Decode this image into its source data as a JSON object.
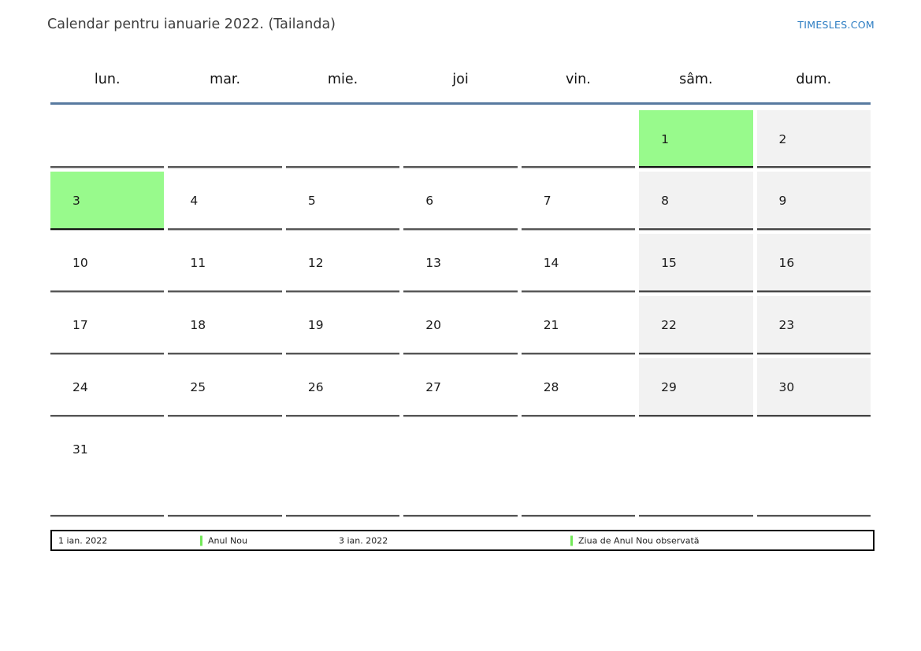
{
  "header": {
    "title": "Calendar pentru ianuarie 2022. (Tailanda)",
    "site": "TIMESLES.COM"
  },
  "calendar": {
    "weekdays": [
      "lun.",
      "mar.",
      "mie.",
      "joi",
      "vin.",
      "sâm.",
      "dum."
    ],
    "weeks": [
      {
        "days": [
          {
            "label": "",
            "type": "empty"
          },
          {
            "label": "",
            "type": "empty"
          },
          {
            "label": "",
            "type": "empty"
          },
          {
            "label": "",
            "type": "empty"
          },
          {
            "label": "",
            "type": "empty"
          },
          {
            "label": "1",
            "type": "holiday"
          },
          {
            "label": "2",
            "type": "weekend"
          }
        ]
      },
      {
        "days": [
          {
            "label": "3",
            "type": "holiday"
          },
          {
            "label": "4",
            "type": "normal"
          },
          {
            "label": "5",
            "type": "normal"
          },
          {
            "label": "6",
            "type": "normal"
          },
          {
            "label": "7",
            "type": "normal"
          },
          {
            "label": "8",
            "type": "weekend"
          },
          {
            "label": "9",
            "type": "weekend"
          }
        ]
      },
      {
        "days": [
          {
            "label": "10",
            "type": "normal"
          },
          {
            "label": "11",
            "type": "normal"
          },
          {
            "label": "12",
            "type": "normal"
          },
          {
            "label": "13",
            "type": "normal"
          },
          {
            "label": "14",
            "type": "normal"
          },
          {
            "label": "15",
            "type": "weekend"
          },
          {
            "label": "16",
            "type": "weekend"
          }
        ]
      },
      {
        "days": [
          {
            "label": "17",
            "type": "normal"
          },
          {
            "label": "18",
            "type": "normal"
          },
          {
            "label": "19",
            "type": "normal"
          },
          {
            "label": "20",
            "type": "normal"
          },
          {
            "label": "21",
            "type": "normal"
          },
          {
            "label": "22",
            "type": "weekend"
          },
          {
            "label": "23",
            "type": "weekend"
          }
        ]
      },
      {
        "days": [
          {
            "label": "24",
            "type": "normal"
          },
          {
            "label": "25",
            "type": "normal"
          },
          {
            "label": "26",
            "type": "normal"
          },
          {
            "label": "27",
            "type": "normal"
          },
          {
            "label": "28",
            "type": "normal"
          },
          {
            "label": "29",
            "type": "weekend"
          },
          {
            "label": "30",
            "type": "weekend"
          }
        ]
      },
      {
        "days": [
          {
            "label": "31",
            "type": "normal"
          },
          {
            "label": "",
            "type": "empty"
          },
          {
            "label": "",
            "type": "empty"
          },
          {
            "label": "",
            "type": "empty"
          },
          {
            "label": "",
            "type": "empty"
          },
          {
            "label": "",
            "type": "empty"
          },
          {
            "label": "",
            "type": "empty"
          }
        ]
      }
    ]
  },
  "legend": {
    "items": [
      {
        "date": "1 ian. 2022",
        "label": "Anul Nou"
      },
      {
        "date": "3 ian. 2022",
        "label": "Ziua de Anul Nou observată"
      }
    ]
  },
  "colors": {
    "holiday_bg": "#98fa8c",
    "weekend_bg": "#f2f2f2",
    "header_rule": "#587aa0",
    "site_link": "#2b7cc2",
    "legend_marker": "#72e858"
  }
}
